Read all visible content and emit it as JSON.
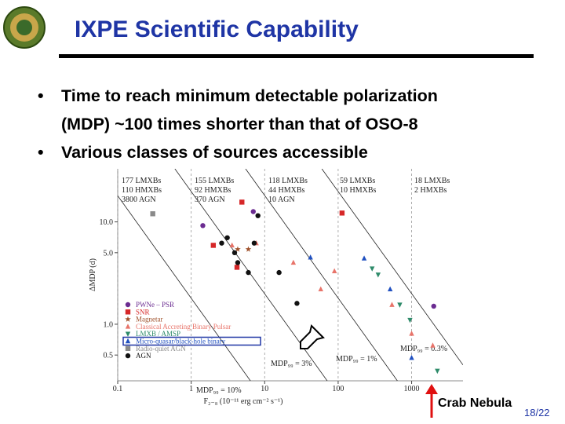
{
  "slide": {
    "title": "IXPE Scientific Capability",
    "bullets": [
      [
        "Time to reach minimum detectable polarization",
        "(MDP) ~100 times shorter than that of OSO-8"
      ],
      [
        "Various classes of sources accessible"
      ]
    ],
    "callout": "Crab Nebula",
    "page_number": "18/22"
  },
  "chart_data": {
    "type": "scatter",
    "x_label": "F₂₋₈ (10⁻¹¹ erg cm⁻² s⁻¹)",
    "y_label": "ΔMDP (d)",
    "log_x": true,
    "log_y": true,
    "xlim": [
      0.1,
      5000
    ],
    "ylim": [
      0.28,
      33
    ],
    "xticks": [
      0.1,
      1,
      10,
      100,
      1000
    ],
    "yticks": [
      {
        "value": 0.5,
        "label": "0.5"
      },
      {
        "value": 1,
        "label": "1.0"
      },
      {
        "value": 5,
        "label": "5.0"
      },
      {
        "value": 10,
        "label": "10.0"
      }
    ],
    "x_grid_dashed": true,
    "legend": "lower left",
    "population_labels": [
      [
        "177 LMXBs",
        "110 HMXBs",
        "3800 AGN"
      ],
      [
        "155 LMXBs",
        "92 HMXBs",
        "370 AGN"
      ],
      [
        "118 LMXBs",
        "44 HMXBs",
        "10 AGN"
      ],
      [
        "59 LMXBs",
        "10 HMXBs"
      ],
      [
        "18 LMXBs",
        "2 HMXBs"
      ]
    ],
    "reference_lines": [
      {
        "label": "MDP₉₉ = 10%",
        "x": [
          0.1,
          6.4
        ],
        "y": [
          18,
          0.28
        ]
      },
      {
        "label": "MDP₉₉ = 3%",
        "x": [
          0.6,
          71
        ],
        "y": [
          33,
          0.28
        ]
      },
      {
        "label": "MDP₉₉ = 1%",
        "x": [
          5.5,
          640
        ],
        "y": [
          33,
          0.28
        ]
      },
      {
        "label": "MDP₉₉ = 0.3%",
        "x": [
          60,
          5000
        ],
        "y": [
          33,
          0.4
        ]
      }
    ],
    "series": [
      {
        "name": "PWNe – PSR",
        "color": "#6b2c91",
        "marker": "circle",
        "x": [
          1.44,
          7.0,
          2000
        ],
        "values": [
          9.2,
          12.6,
          1.5
        ]
      },
      {
        "name": "SNR",
        "color": "#d62728",
        "marker": "square",
        "x": [
          2.0,
          4.9,
          113,
          4.2
        ],
        "values": [
          5.9,
          15.6,
          12.2,
          3.6
        ]
      },
      {
        "name": "Magnetar",
        "color": "#a0522d",
        "marker": "star",
        "x": [
          4.3,
          6.0
        ],
        "values": [
          5.4,
          5.4
        ]
      },
      {
        "name": "Classical Accreting Binary Pulsar",
        "color": "#e8746a",
        "marker": "triangle",
        "x": [
          3.6,
          7.7,
          24.6,
          89,
          58,
          540,
          1000,
          1940
        ],
        "values": [
          5.9,
          6.2,
          4.0,
          3.3,
          2.2,
          1.55,
          0.81,
          0.62
        ]
      },
      {
        "name": "LMXB / AMSP",
        "color": "#2e8b6a",
        "marker": "triangle-down",
        "x": [
          290,
          350,
          690,
          950,
          2240
        ],
        "values": [
          3.5,
          3.05,
          1.55,
          1.1,
          0.35
        ]
      },
      {
        "name": "Micro-quasar/black-hole binary",
        "color": "#2050c0",
        "marker": "triangle",
        "x": [
          42,
          226,
          510,
          1000
        ],
        "values": [
          4.5,
          4.4,
          2.2,
          0.47
        ]
      },
      {
        "name": "Radio-quiet AGN",
        "color": "#8a8a8a",
        "marker": "square",
        "x": [
          0.3
        ],
        "values": [
          12
        ]
      },
      {
        "name": "AGN",
        "color": "#111111",
        "marker": "circle",
        "x": [
          8.1,
          3.1,
          2.6,
          7.2,
          3.9,
          4.3,
          6.0,
          15.7,
          27.5
        ],
        "values": [
          11.5,
          7.0,
          6.2,
          6.2,
          5.0,
          4.0,
          3.2,
          3.2,
          1.6
        ]
      }
    ]
  }
}
